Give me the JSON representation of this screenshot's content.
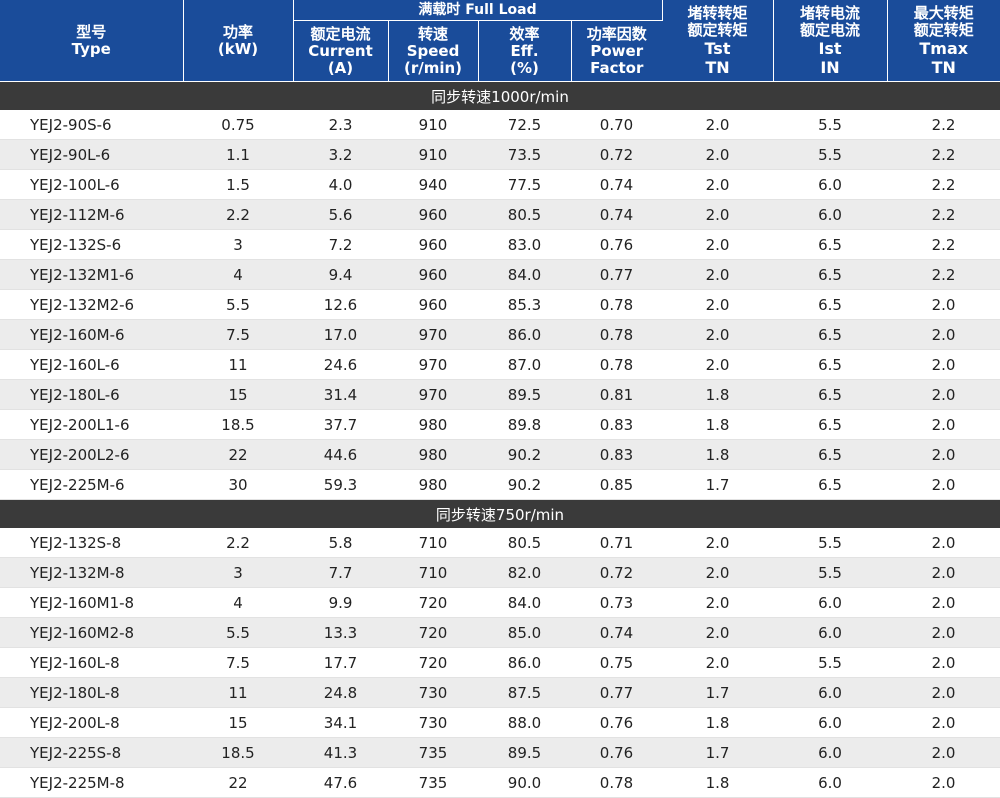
{
  "header": {
    "type": {
      "zh": "型号",
      "en": "Type"
    },
    "power": {
      "zh": "功率",
      "en": "(kW)"
    },
    "full_load": "满载时 Full Load",
    "current": {
      "zh": "额定电流",
      "en": "Current",
      "unit": "(A)"
    },
    "speed": {
      "zh": "转速",
      "en": "Speed",
      "unit": "(r/min)"
    },
    "eff": {
      "zh": "效率",
      "en": "Eff.",
      "unit": "(%)"
    },
    "pf": {
      "zh": "功率因数",
      "en": "Power",
      "en2": "Factor"
    },
    "tst": {
      "zh1": "堵转转矩",
      "zh2": "额定转矩",
      "sym": "Tst",
      "den": "TN"
    },
    "ist": {
      "zh1": "堵转电流",
      "zh2": "额定电流",
      "sym": "Ist",
      "den": "IN"
    },
    "tmax": {
      "zh1": "最大转矩",
      "zh2": "额定转矩",
      "sym": "Tmax",
      "den": "TN"
    }
  },
  "sections": [
    {
      "title": "同步转速1000r/min",
      "rows": [
        [
          "YEJ2-90S-6",
          "0.75",
          "2.3",
          "910",
          "72.5",
          "0.70",
          "2.0",
          "5.5",
          "2.2"
        ],
        [
          "YEJ2-90L-6",
          "1.1",
          "3.2",
          "910",
          "73.5",
          "0.72",
          "2.0",
          "5.5",
          "2.2"
        ],
        [
          "YEJ2-100L-6",
          "1.5",
          "4.0",
          "940",
          "77.5",
          "0.74",
          "2.0",
          "6.0",
          "2.2"
        ],
        [
          "YEJ2-112M-6",
          "2.2",
          "5.6",
          "960",
          "80.5",
          "0.74",
          "2.0",
          "6.0",
          "2.2"
        ],
        [
          "YEJ2-132S-6",
          "3",
          "7.2",
          "960",
          "83.0",
          "0.76",
          "2.0",
          "6.5",
          "2.2"
        ],
        [
          "YEJ2-132M1-6",
          "4",
          "9.4",
          "960",
          "84.0",
          "0.77",
          "2.0",
          "6.5",
          "2.2"
        ],
        [
          "YEJ2-132M2-6",
          "5.5",
          "12.6",
          "960",
          "85.3",
          "0.78",
          "2.0",
          "6.5",
          "2.0"
        ],
        [
          "YEJ2-160M-6",
          "7.5",
          "17.0",
          "970",
          "86.0",
          "0.78",
          "2.0",
          "6.5",
          "2.0"
        ],
        [
          "YEJ2-160L-6",
          "11",
          "24.6",
          "970",
          "87.0",
          "0.78",
          "2.0",
          "6.5",
          "2.0"
        ],
        [
          "YEJ2-180L-6",
          "15",
          "31.4",
          "970",
          "89.5",
          "0.81",
          "1.8",
          "6.5",
          "2.0"
        ],
        [
          "YEJ2-200L1-6",
          "18.5",
          "37.7",
          "980",
          "89.8",
          "0.83",
          "1.8",
          "6.5",
          "2.0"
        ],
        [
          "YEJ2-200L2-6",
          "22",
          "44.6",
          "980",
          "90.2",
          "0.83",
          "1.8",
          "6.5",
          "2.0"
        ],
        [
          "YEJ2-225M-6",
          "30",
          "59.3",
          "980",
          "90.2",
          "0.85",
          "1.7",
          "6.5",
          "2.0"
        ]
      ]
    },
    {
      "title": "同步转速750r/min",
      "rows": [
        [
          "YEJ2-132S-8",
          "2.2",
          "5.8",
          "710",
          "80.5",
          "0.71",
          "2.0",
          "5.5",
          "2.0"
        ],
        [
          "YEJ2-132M-8",
          "3",
          "7.7",
          "710",
          "82.0",
          "0.72",
          "2.0",
          "5.5",
          "2.0"
        ],
        [
          "YEJ2-160M1-8",
          "4",
          "9.9",
          "720",
          "84.0",
          "0.73",
          "2.0",
          "6.0",
          "2.0"
        ],
        [
          "YEJ2-160M2-8",
          "5.5",
          "13.3",
          "720",
          "85.0",
          "0.74",
          "2.0",
          "6.0",
          "2.0"
        ],
        [
          "YEJ2-160L-8",
          "7.5",
          "17.7",
          "720",
          "86.0",
          "0.75",
          "2.0",
          "5.5",
          "2.0"
        ],
        [
          "YEJ2-180L-8",
          "11",
          "24.8",
          "730",
          "87.5",
          "0.77",
          "1.7",
          "6.0",
          "2.0"
        ],
        [
          "YEJ2-200L-8",
          "15",
          "34.1",
          "730",
          "88.0",
          "0.76",
          "1.8",
          "6.0",
          "2.0"
        ],
        [
          "YEJ2-225S-8",
          "18.5",
          "41.3",
          "735",
          "89.5",
          "0.76",
          "1.7",
          "6.0",
          "2.0"
        ],
        [
          "YEJ2-225M-8",
          "22",
          "47.6",
          "735",
          "90.0",
          "0.78",
          "1.8",
          "6.0",
          "2.0"
        ]
      ]
    }
  ]
}
